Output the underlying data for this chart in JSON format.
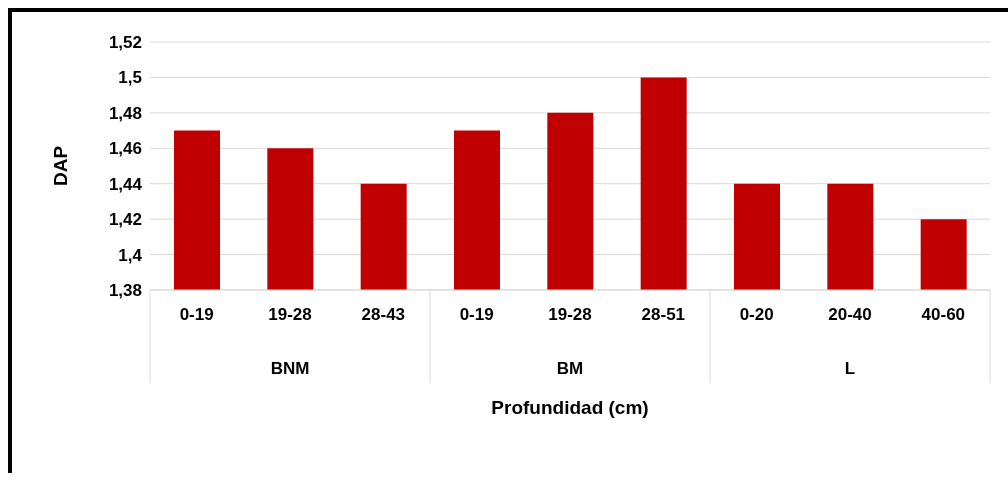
{
  "chart_data": {
    "type": "bar",
    "xlabel": "Profundidad (cm)",
    "ylabel": "DAP",
    "categories": [
      "0-19",
      "19-28",
      "28-43",
      "0-19",
      "19-28",
      "28-51",
      "0-20",
      "20-40",
      "40-60"
    ],
    "values": [
      1.47,
      1.46,
      1.44,
      1.47,
      1.48,
      1.5,
      1.44,
      1.44,
      1.42
    ],
    "color": "#c00000",
    "ylim": [
      1.38,
      1.52
    ],
    "yticks": [
      {
        "value": 1.38,
        "label": "1,38"
      },
      {
        "value": 1.4,
        "label": "1,4"
      },
      {
        "value": 1.42,
        "label": "1,42"
      },
      {
        "value": 1.44,
        "label": "1,44"
      },
      {
        "value": 1.46,
        "label": "1,46"
      },
      {
        "value": 1.48,
        "label": "1,48"
      },
      {
        "value": 1.5,
        "label": "1,5"
      },
      {
        "value": 1.52,
        "label": "1,52"
      }
    ],
    "grid": "y",
    "annotations": [
      "BNM",
      "BM",
      "L"
    ]
  }
}
